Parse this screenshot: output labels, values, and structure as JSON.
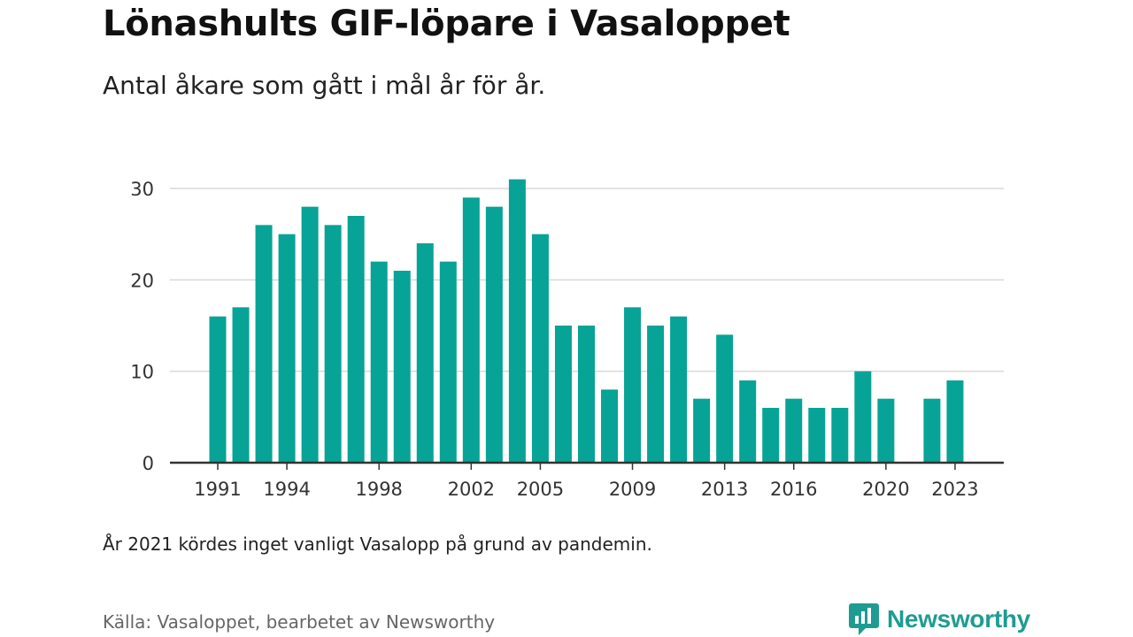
{
  "header": {
    "title": "Lönashults GIF-löpare i Vasaloppet",
    "subtitle": "Antal åkare som gått i mål år för år."
  },
  "footer": {
    "note": "År 2021 kördes inget vanligt Vasalopp på grund av pandemin.",
    "source": "Källa: Vasaloppet, bearbetet av Newsworthy",
    "logo_text": "Newsworthy",
    "logo_icon": "newsworthy-logo-icon"
  },
  "colors": {
    "bar": "#07a396",
    "grid": "#d9d9d9",
    "axis": "#333333",
    "brand": "#1f9c91"
  },
  "chart_data": {
    "type": "bar",
    "x": [
      1991,
      1992,
      1993,
      1994,
      1995,
      1996,
      1997,
      1998,
      1999,
      2000,
      2001,
      2002,
      2003,
      2004,
      2005,
      2006,
      2007,
      2008,
      2009,
      2010,
      2011,
      2012,
      2013,
      2014,
      2015,
      2016,
      2017,
      2018,
      2019,
      2020,
      2021,
      2022,
      2023
    ],
    "values": [
      16,
      17,
      26,
      25,
      28,
      26,
      27,
      22,
      21,
      24,
      22,
      29,
      28,
      31,
      25,
      15,
      15,
      8,
      17,
      15,
      16,
      7,
      14,
      9,
      6,
      7,
      6,
      6,
      10,
      7,
      null,
      7,
      9
    ],
    "x_tick_labels": [
      "1991",
      "1994",
      "1998",
      "2002",
      "2005",
      "2009",
      "2013",
      "2016",
      "2020",
      "2023"
    ],
    "y_ticks": [
      0,
      10,
      20,
      30
    ],
    "ylim": [
      0,
      31
    ],
    "grid": true,
    "legend": "none",
    "title": "Lönashults GIF-löpare i Vasaloppet",
    "subtitle": "Antal åkare som gått i mål år för år.",
    "xlabel": "",
    "ylabel": ""
  }
}
